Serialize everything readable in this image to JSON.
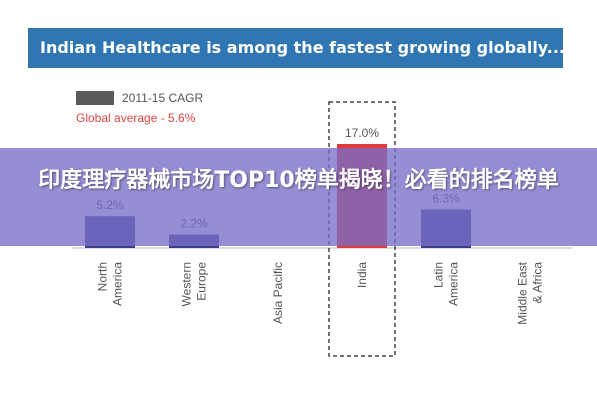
{
  "header": {
    "title": "Indian Healthcare is among the fastest growing globally..."
  },
  "legend": {
    "cagr_label": "2011-15 CAGR",
    "global_label": "Global average - 5.6%"
  },
  "overlay": {
    "title": "印度理疗器械市场TOP10榜单揭晓！必看的排名榜单"
  },
  "colors": {
    "bar": "#3a3f8a",
    "highlight": "#e03a3a",
    "header": "#2f76b3",
    "overlay": "#7a6ec8"
  },
  "chart_data": {
    "type": "bar",
    "categories": [
      "North America",
      "Western Europe",
      "Asia Pacific",
      "India",
      "Latin America",
      "Middle East & Africa"
    ],
    "values": [
      5.2,
      2.2,
      null,
      17.0,
      6.3,
      null
    ],
    "value_labels": [
      "5.2%",
      "2.2%",
      "",
      "17.0%",
      "6.3%",
      ""
    ],
    "highlight_category": "India",
    "series": [
      {
        "name": "2011-15 CAGR",
        "values": [
          5.2,
          2.2,
          null,
          17.0,
          6.3,
          null
        ]
      }
    ],
    "reference_line": {
      "label": "Global average - 5.6%",
      "value": 5.6
    },
    "ylim": [
      0,
      17.0
    ],
    "grid": false,
    "legend_position": "top-left"
  }
}
